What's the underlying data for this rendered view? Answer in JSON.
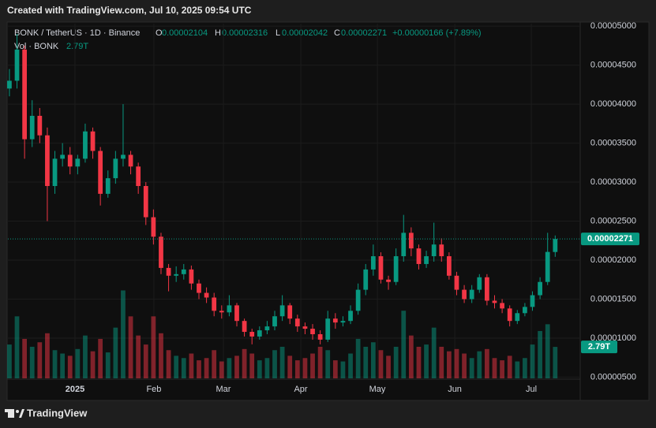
{
  "header": {
    "created": "Created with TradingView.com, Jul 10, 2025 09:54 UTC",
    "brand": "TradingView"
  },
  "chart_data": {
    "type": "candlestick",
    "symbol": "BONK / TetherUS · 1D · Binance",
    "ohlc_letters": [
      "O",
      "H",
      "L",
      "C"
    ],
    "change_label": "+0.00000166 (+7.89%)",
    "volume_title": "Vol · BONK",
    "volume_label": "2.79T",
    "up_color": "#089981",
    "down_color": "#f23645",
    "open": [
      4.2e-05,
      4.3e-05,
      4.7e-05,
      3.55e-05,
      3.85e-05,
      3.6e-05,
      2.95e-05,
      3.3e-05,
      3.35e-05,
      3.2e-05,
      3.3e-05,
      3.65e-05,
      3.4e-05,
      2.85e-05,
      3.05e-05,
      3.3e-05,
      3.35e-05,
      3.2e-05,
      2.95e-05,
      2.55e-05,
      2.3e-05,
      1.9e-05,
      1.8e-05,
      1.82e-05,
      1.88e-05,
      1.7e-05,
      1.58e-05,
      1.52e-05,
      1.35e-05,
      1.33e-05,
      1.42e-05,
      1.22e-05,
      1.08e-05,
      1.02e-05,
      1.1e-05,
      1.15e-05,
      1.28e-05,
      1.42e-05,
      1.25e-05,
      1.15e-05,
      1.12e-05,
      1.05e-05,
      9.8e-06,
      1.25e-05,
      1.2e-05,
      1.22e-05,
      1.35e-05,
      1.62e-05,
      1.88e-05,
      2.05e-05,
      1.75e-05,
      1.72e-05,
      2.05e-05,
      2.35e-05,
      2.15e-05,
      1.95e-05,
      2.05e-05,
      2.2e-05,
      2.05e-05,
      1.8e-05,
      1.62e-05,
      1.5e-05,
      1.62e-05,
      1.78e-05,
      1.48e-05,
      1.45e-05,
      1.38e-05,
      1.22e-05,
      1.32e-05,
      1.4e-05,
      1.55e-05,
      1.72e-05,
      2.104e-05
    ],
    "high": [
      4.45e-05,
      4.9e-05,
      4.75e-05,
      4.05e-05,
      3.95e-05,
      3.7e-05,
      3.4e-05,
      3.5e-05,
      3.45e-05,
      3.35e-05,
      3.75e-05,
      3.7e-05,
      3.45e-05,
      3.15e-05,
      3.4e-05,
      4e-05,
      3.4e-05,
      3.25e-05,
      3e-05,
      2.65e-05,
      2.35e-05,
      1.95e-05,
      1.92e-05,
      1.95e-05,
      1.93e-05,
      1.75e-05,
      1.65e-05,
      1.58e-05,
      1.42e-05,
      1.55e-05,
      1.45e-05,
      1.25e-05,
      1.12e-05,
      1.15e-05,
      1.22e-05,
      1.35e-05,
      1.55e-05,
      1.45e-05,
      1.3e-05,
      1.2e-05,
      1.18e-05,
      1.1e-05,
      1.35e-05,
      1.32e-05,
      1.28e-05,
      1.42e-05,
      1.7e-05,
      1.95e-05,
      2.2e-05,
      2.1e-05,
      1.8e-05,
      2.15e-05,
      2.58e-05,
      2.42e-05,
      2.2e-05,
      2.12e-05,
      2.48e-05,
      2.28e-05,
      2.1e-05,
      1.85e-05,
      1.68e-05,
      1.68e-05,
      1.82e-05,
      1.82e-05,
      1.55e-05,
      1.5e-05,
      1.42e-05,
      1.36e-05,
      1.45e-05,
      1.6e-05,
      1.78e-05,
      2.35e-05,
      2.316e-05
    ],
    "low": [
      4.1e-05,
      4.2e-05,
      3.3e-05,
      3.45e-05,
      3.5e-05,
      2.5e-05,
      2.85e-05,
      3.2e-05,
      3.1e-05,
      3.1e-05,
      3.25e-05,
      3.3e-05,
      2.7e-05,
      2.8e-05,
      2.98e-05,
      3.2e-05,
      3.1e-05,
      2.85e-05,
      2.45e-05,
      2.2e-05,
      1.82e-05,
      1.6e-05,
      1.72e-05,
      1.75e-05,
      1.62e-05,
      1.5e-05,
      1.45e-05,
      1.28e-05,
      1.25e-05,
      1.28e-05,
      1.15e-05,
      1.02e-05,
      9.2e-06,
      9.8e-06,
      1.05e-05,
      1.1e-05,
      1.22e-05,
      1.18e-05,
      1.08e-05,
      1.05e-05,
      9.8e-06,
      9.2e-06,
      9.5e-06,
      1.12e-05,
      1.15e-05,
      1.18e-05,
      1.3e-05,
      1.55e-05,
      1.8e-05,
      1.7e-05,
      1.62e-05,
      1.68e-05,
      1.98e-05,
      2.05e-05,
      1.88e-05,
      1.9e-05,
      1.98e-05,
      1.98e-05,
      1.75e-05,
      1.55e-05,
      1.45e-05,
      1.45e-05,
      1.58e-05,
      1.42e-05,
      1.38e-05,
      1.32e-05,
      1.15e-05,
      1.18e-05,
      1.28e-05,
      1.35e-05,
      1.5e-05,
      1.68e-05,
      2.042e-05
    ],
    "close": [
      4.3e-05,
      4.7e-05,
      3.55e-05,
      3.85e-05,
      3.6e-05,
      2.95e-05,
      3.3e-05,
      3.35e-05,
      3.2e-05,
      3.3e-05,
      3.65e-05,
      3.4e-05,
      2.85e-05,
      3.05e-05,
      3.3e-05,
      3.35e-05,
      3.2e-05,
      2.95e-05,
      2.55e-05,
      2.3e-05,
      1.9e-05,
      1.8e-05,
      1.82e-05,
      1.88e-05,
      1.7e-05,
      1.58e-05,
      1.52e-05,
      1.35e-05,
      1.33e-05,
      1.42e-05,
      1.22e-05,
      1.08e-05,
      1.02e-05,
      1.1e-05,
      1.15e-05,
      1.28e-05,
      1.42e-05,
      1.25e-05,
      1.15e-05,
      1.12e-05,
      1.05e-05,
      9.8e-06,
      1.25e-05,
      1.2e-05,
      1.22e-05,
      1.35e-05,
      1.62e-05,
      1.88e-05,
      2.05e-05,
      1.75e-05,
      1.72e-05,
      2.05e-05,
      2.35e-05,
      2.15e-05,
      1.95e-05,
      2.05e-05,
      2.2e-05,
      2.05e-05,
      1.8e-05,
      1.62e-05,
      1.5e-05,
      1.62e-05,
      1.78e-05,
      1.48e-05,
      1.45e-05,
      1.38e-05,
      1.22e-05,
      1.32e-05,
      1.4e-05,
      1.55e-05,
      1.72e-05,
      2.105e-05,
      2.271e-05
    ],
    "volume": [
      3.0,
      5.5,
      3.5,
      2.8,
      3.2,
      4.0,
      2.5,
      2.2,
      2.0,
      2.6,
      3.8,
      2.4,
      3.5,
      2.3,
      4.5,
      7.8,
      5.5,
      3.8,
      3.0,
      5.5,
      4.0,
      2.5,
      2.0,
      1.8,
      2.2,
      1.6,
      1.8,
      2.5,
      1.5,
      1.8,
      2.0,
      2.6,
      2.2,
      1.6,
      1.8,
      2.5,
      2.8,
      2.0,
      1.6,
      1.8,
      2.2,
      2.8,
      2.5,
      1.6,
      1.5,
      2.2,
      3.5,
      2.8,
      3.2,
      2.5,
      2.0,
      2.8,
      6.0,
      3.8,
      2.8,
      3.0,
      4.5,
      2.8,
      2.4,
      2.6,
      2.2,
      1.8,
      2.4,
      2.6,
      1.8,
      1.6,
      2.0,
      1.5,
      1.8,
      3.0,
      4.2,
      4.8,
      2.79
    ],
    "xlim": [
      -0.2,
      75.3
    ],
    "xticks": [
      {
        "value": 8.65,
        "label": "2025"
      },
      {
        "value": 19.06,
        "label": "Feb"
      },
      {
        "value": 28.23,
        "label": "Mar"
      },
      {
        "value": 38.44,
        "label": "Apr"
      },
      {
        "value": 48.54,
        "label": "May"
      },
      {
        "value": 58.75,
        "label": "Jun"
      },
      {
        "value": 68.85,
        "label": "Jul"
      }
    ],
    "ylim": [
      4.84e-06,
      5.032e-05
    ],
    "yticks": [
      {
        "value": 5e-05,
        "label": "0.00005000"
      },
      {
        "value": 4.5e-05,
        "label": "0.00004500"
      },
      {
        "value": 4e-05,
        "label": "0.00004000"
      },
      {
        "value": 3.5e-05,
        "label": "0.00003500"
      },
      {
        "value": 3e-05,
        "label": "0.00003000"
      },
      {
        "value": 2.5e-05,
        "label": "0.00002500"
      },
      {
        "value": 2e-05,
        "label": "0.00002000"
      },
      {
        "value": 1.5e-05,
        "label": "0.00001500"
      },
      {
        "value": 1e-05,
        "label": "0.00001000"
      },
      {
        "value": 5e-06,
        "label": "0.00000500"
      }
    ],
    "grid": true
  }
}
